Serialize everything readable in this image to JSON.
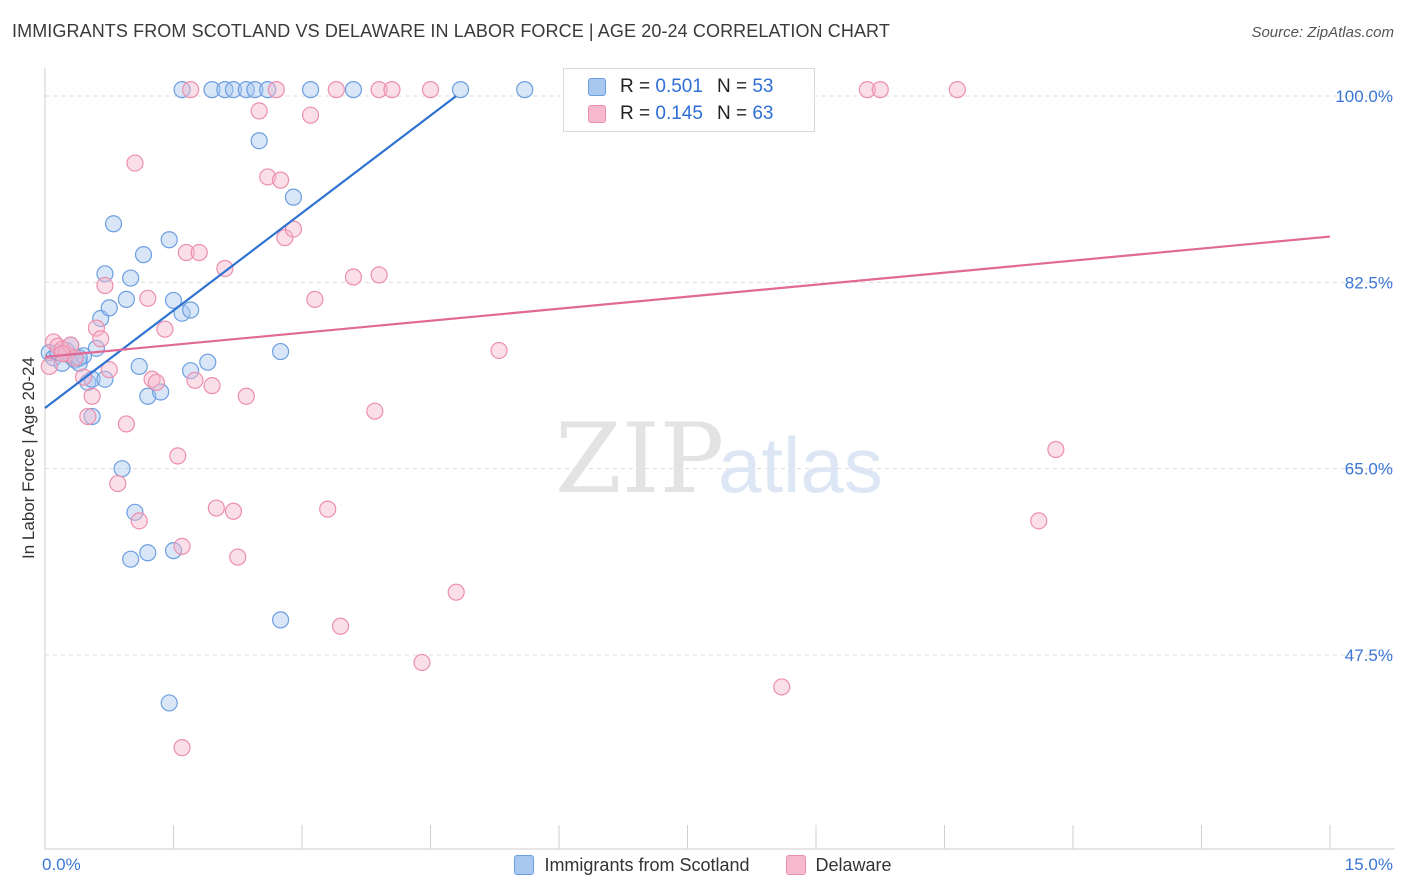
{
  "header": {
    "title": "IMMIGRANTS FROM SCOTLAND VS DELAWARE IN LABOR FORCE | AGE 20-24 CORRELATION CHART",
    "source": "Source: ZipAtlas.com"
  },
  "legend": {
    "r_label": "R =",
    "n_label": "N =",
    "rows": [
      {
        "r": "0.501",
        "n": "53"
      },
      {
        "r": "0.145",
        "n": "63"
      }
    ]
  },
  "watermark": {
    "part1": "ZIP",
    "part2": "atlas"
  },
  "colors": {
    "series1_fill": "#a9c8f0",
    "series1_stroke": "#6c9fe0",
    "series1_line": "#2f73d2",
    "series2_fill": "#f6b9cd",
    "series2_stroke": "#ec8fae",
    "series2_line": "#e06a95",
    "tick_label": "#3b76d6",
    "grid": "#dcdcdc"
  },
  "chart_data": {
    "type": "scatter",
    "title": "IMMIGRANTS FROM SCOTLAND VS DELAWARE IN LABOR FORCE | AGE 20-24 CORRELATION CHART",
    "xlabel": "",
    "ylabel": "In Labor Force | Age 20-24",
    "xlim": [
      0,
      15
    ],
    "ylim": [
      32.5,
      100
    ],
    "x_tick_labels": [
      "0.0%",
      "15.0%"
    ],
    "y_ticks": [
      47.5,
      65.0,
      82.5,
      100.0
    ],
    "y_tick_labels": [
      "47.5%",
      "65.0%",
      "82.5%",
      "100.0%"
    ],
    "grid": true,
    "legend_position": "top-center",
    "series": [
      {
        "name": "Immigrants from Scotland",
        "r": 0.501,
        "n": 53,
        "trend": {
          "x": [
            0.0,
            4.8
          ],
          "y": [
            70.7,
            100.0
          ]
        },
        "points": [
          [
            0.05,
            75.9
          ],
          [
            0.1,
            75.4
          ],
          [
            0.15,
            75.9
          ],
          [
            0.2,
            74.9
          ],
          [
            0.25,
            76.1
          ],
          [
            0.3,
            75.6
          ],
          [
            0.35,
            75.2
          ],
          [
            0.4,
            74.9
          ],
          [
            0.45,
            75.6
          ],
          [
            0.5,
            73.1
          ],
          [
            0.55,
            73.4
          ],
          [
            0.6,
            76.3
          ],
          [
            0.65,
            79.1
          ],
          [
            0.7,
            83.3
          ],
          [
            0.75,
            80.1
          ],
          [
            0.8,
            88.0
          ],
          [
            0.95,
            80.9
          ],
          [
            1.15,
            85.1
          ],
          [
            1.1,
            74.6
          ],
          [
            1.2,
            71.8
          ],
          [
            1.35,
            72.2
          ],
          [
            1.5,
            80.8
          ],
          [
            1.6,
            79.6
          ],
          [
            1.45,
            86.5
          ],
          [
            1.7,
            79.9
          ],
          [
            1.9,
            75.0
          ],
          [
            0.9,
            65.0
          ],
          [
            1.2,
            57.1
          ],
          [
            1.0,
            56.5
          ],
          [
            1.05,
            60.9
          ],
          [
            1.5,
            57.3
          ],
          [
            2.5,
            95.8
          ],
          [
            2.9,
            90.5
          ],
          [
            1.6,
            100.6
          ],
          [
            1.95,
            100.6
          ],
          [
            2.1,
            100.6
          ],
          [
            2.2,
            100.6
          ],
          [
            2.35,
            100.6
          ],
          [
            2.45,
            100.6
          ],
          [
            2.6,
            100.6
          ],
          [
            3.1,
            100.6
          ],
          [
            3.6,
            100.6
          ],
          [
            4.85,
            100.6
          ],
          [
            5.6,
            100.6
          ],
          [
            2.75,
            76.0
          ],
          [
            2.75,
            50.8
          ],
          [
            1.45,
            43.0
          ],
          [
            0.55,
            69.9
          ],
          [
            0.7,
            73.4
          ],
          [
            0.3,
            76.6
          ],
          [
            1.7,
            74.2
          ],
          [
            1.0,
            82.9
          ],
          [
            0.4,
            75.4
          ]
        ]
      },
      {
        "name": "Delaware",
        "r": 0.145,
        "n": 63,
        "trend": {
          "x": [
            0.0,
            15.0
          ],
          "y": [
            75.5,
            86.8
          ]
        },
        "points": [
          [
            0.05,
            74.6
          ],
          [
            0.1,
            76.9
          ],
          [
            0.15,
            76.5
          ],
          [
            0.2,
            76.2
          ],
          [
            0.25,
            75.8
          ],
          [
            0.3,
            76.6
          ],
          [
            0.35,
            75.4
          ],
          [
            0.45,
            73.6
          ],
          [
            0.5,
            69.9
          ],
          [
            0.55,
            71.8
          ],
          [
            0.6,
            78.2
          ],
          [
            0.65,
            77.2
          ],
          [
            0.7,
            82.2
          ],
          [
            0.75,
            74.3
          ],
          [
            0.85,
            63.6
          ],
          [
            0.95,
            69.2
          ],
          [
            1.05,
            93.7
          ],
          [
            1.1,
            60.1
          ],
          [
            1.2,
            81.0
          ],
          [
            1.25,
            73.4
          ],
          [
            1.3,
            73.1
          ],
          [
            1.4,
            78.1
          ],
          [
            1.55,
            66.2
          ],
          [
            1.6,
            57.7
          ],
          [
            1.65,
            85.3
          ],
          [
            1.75,
            73.3
          ],
          [
            1.8,
            85.3
          ],
          [
            1.95,
            72.8
          ],
          [
            2.0,
            61.3
          ],
          [
            2.1,
            83.8
          ],
          [
            2.2,
            61.0
          ],
          [
            2.25,
            56.7
          ],
          [
            2.35,
            71.8
          ],
          [
            2.5,
            98.6
          ],
          [
            2.6,
            92.4
          ],
          [
            2.75,
            92.1
          ],
          [
            2.8,
            86.7
          ],
          [
            2.9,
            87.5
          ],
          [
            3.1,
            98.2
          ],
          [
            3.15,
            80.9
          ],
          [
            3.3,
            61.2
          ],
          [
            3.45,
            50.2
          ],
          [
            3.6,
            83.0
          ],
          [
            3.85,
            70.4
          ],
          [
            3.9,
            83.2
          ],
          [
            1.6,
            38.8
          ],
          [
            4.4,
            46.8
          ],
          [
            4.8,
            53.4
          ],
          [
            5.3,
            76.1
          ],
          [
            1.7,
            100.6
          ],
          [
            2.7,
            100.6
          ],
          [
            3.4,
            100.6
          ],
          [
            3.9,
            100.6
          ],
          [
            4.05,
            100.6
          ],
          [
            4.5,
            100.6
          ],
          [
            7.8,
            100.6
          ],
          [
            9.6,
            100.6
          ],
          [
            9.75,
            100.6
          ],
          [
            10.65,
            100.6
          ],
          [
            8.6,
            44.5
          ],
          [
            11.6,
            60.1
          ],
          [
            11.8,
            66.8
          ],
          [
            0.2,
            75.8
          ]
        ]
      }
    ]
  }
}
